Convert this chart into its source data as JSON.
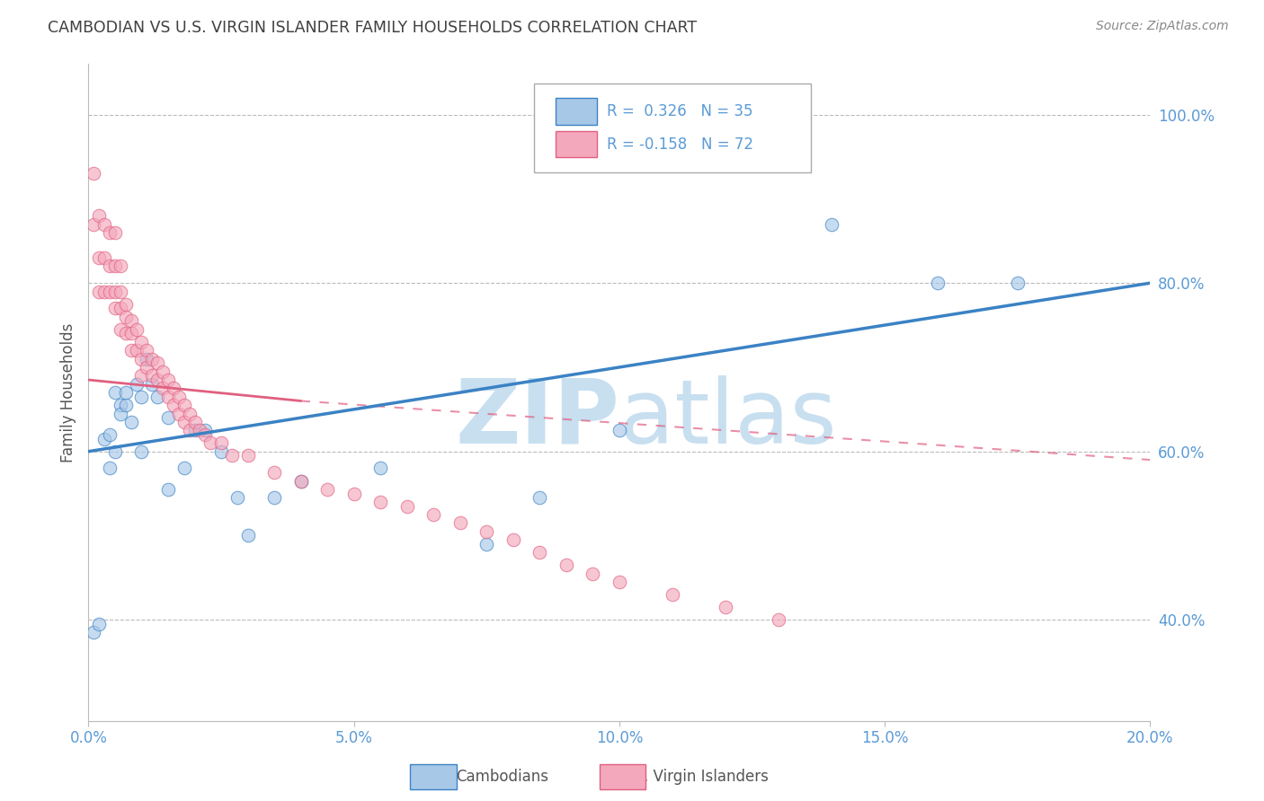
{
  "title": "CAMBODIAN VS U.S. VIRGIN ISLANDER FAMILY HOUSEHOLDS CORRELATION CHART",
  "source": "Source: ZipAtlas.com",
  "ylabel": "Family Households",
  "x_ticks": [
    0.0,
    0.05,
    0.1,
    0.15,
    0.2
  ],
  "x_tick_labels": [
    "0.0%",
    "5.0%",
    "10.0%",
    "15.0%",
    "20.0%"
  ],
  "y_ticks_right": [
    0.4,
    0.6,
    0.8,
    1.0
  ],
  "y_tick_labels_right": [
    "40.0%",
    "60.0%",
    "80.0%",
    "100.0%"
  ],
  "xlim": [
    0.0,
    0.2
  ],
  "ylim": [
    0.28,
    1.06
  ],
  "cambodian_color": "#A8C8E8",
  "virgin_islander_color": "#F4A8BC",
  "trend_cambodian_color": "#3B82C4",
  "trend_virgin_color": "#E06080",
  "watermark_zip": "ZIP",
  "watermark_atlas": "atlas",
  "watermark_color": "#C8DFF0",
  "grid_color": "#BBBBBB",
  "title_color": "#404040",
  "axis_label_color": "#555555",
  "tick_label_color": "#5B9BD5",
  "source_color": "#888888",
  "background_color": "#FFFFFF",
  "cambodian_x": [
    0.001,
    0.002,
    0.003,
    0.004,
    0.004,
    0.005,
    0.005,
    0.006,
    0.006,
    0.007,
    0.007,
    0.008,
    0.009,
    0.01,
    0.01,
    0.011,
    0.012,
    0.013,
    0.015,
    0.015,
    0.018,
    0.02,
    0.022,
    0.025,
    0.028,
    0.03,
    0.035,
    0.04,
    0.055,
    0.075,
    0.085,
    0.1,
    0.14,
    0.16,
    0.175
  ],
  "cambodian_y": [
    0.385,
    0.395,
    0.615,
    0.62,
    0.58,
    0.67,
    0.6,
    0.655,
    0.645,
    0.655,
    0.67,
    0.635,
    0.68,
    0.665,
    0.6,
    0.71,
    0.68,
    0.665,
    0.555,
    0.64,
    0.58,
    0.625,
    0.625,
    0.6,
    0.545,
    0.5,
    0.545,
    0.565,
    0.58,
    0.49,
    0.545,
    0.625,
    0.87,
    0.8,
    0.8
  ],
  "virgin_x": [
    0.001,
    0.001,
    0.002,
    0.002,
    0.002,
    0.003,
    0.003,
    0.003,
    0.004,
    0.004,
    0.004,
    0.005,
    0.005,
    0.005,
    0.005,
    0.006,
    0.006,
    0.006,
    0.006,
    0.007,
    0.007,
    0.007,
    0.008,
    0.008,
    0.008,
    0.009,
    0.009,
    0.01,
    0.01,
    0.01,
    0.011,
    0.011,
    0.012,
    0.012,
    0.013,
    0.013,
    0.014,
    0.014,
    0.015,
    0.015,
    0.016,
    0.016,
    0.017,
    0.017,
    0.018,
    0.018,
    0.019,
    0.019,
    0.02,
    0.021,
    0.022,
    0.023,
    0.025,
    0.027,
    0.03,
    0.035,
    0.04,
    0.045,
    0.05,
    0.055,
    0.06,
    0.065,
    0.07,
    0.075,
    0.08,
    0.085,
    0.09,
    0.095,
    0.1,
    0.11,
    0.12,
    0.13
  ],
  "virgin_y": [
    0.93,
    0.87,
    0.88,
    0.83,
    0.79,
    0.87,
    0.83,
    0.79,
    0.86,
    0.82,
    0.79,
    0.86,
    0.82,
    0.79,
    0.77,
    0.82,
    0.79,
    0.77,
    0.745,
    0.775,
    0.76,
    0.74,
    0.755,
    0.74,
    0.72,
    0.745,
    0.72,
    0.73,
    0.71,
    0.69,
    0.72,
    0.7,
    0.71,
    0.69,
    0.705,
    0.685,
    0.695,
    0.675,
    0.685,
    0.665,
    0.675,
    0.655,
    0.665,
    0.645,
    0.655,
    0.635,
    0.645,
    0.625,
    0.635,
    0.625,
    0.62,
    0.61,
    0.61,
    0.595,
    0.595,
    0.575,
    0.565,
    0.555,
    0.55,
    0.54,
    0.535,
    0.525,
    0.515,
    0.505,
    0.495,
    0.48,
    0.465,
    0.455,
    0.445,
    0.43,
    0.415,
    0.4
  ]
}
